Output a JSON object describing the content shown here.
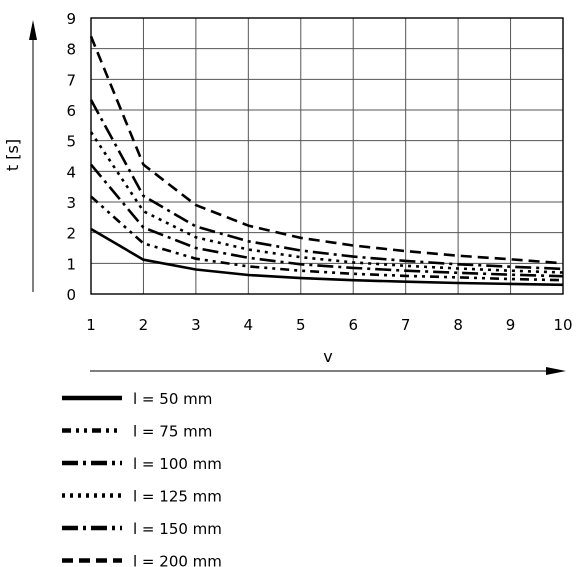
{
  "chart_data": {
    "type": "line",
    "title": "",
    "xlabel": "v",
    "ylabel": "t [s]",
    "xlim": [
      1,
      10
    ],
    "ylim": [
      0,
      9
    ],
    "x_ticks": [
      "1",
      "2",
      "3",
      "4",
      "5",
      "6",
      "7",
      "8",
      "9",
      "10"
    ],
    "y_ticks": [
      "0",
      "1",
      "2",
      "3",
      "4",
      "5",
      "6",
      "7",
      "8",
      "9"
    ],
    "grid": true,
    "legend_position": "bottom-left",
    "x": [
      1,
      2,
      3,
      4,
      5,
      6,
      7,
      8,
      9,
      10
    ],
    "series": [
      {
        "name": "l = 50 mm",
        "style": "solid",
        "values": [
          2.12,
          1.12,
          0.8,
          0.62,
          0.52,
          0.45,
          0.4,
          0.36,
          0.33,
          0.3
        ]
      },
      {
        "name": "l = 75 mm",
        "style": "dash-dot-dot",
        "values": [
          3.18,
          1.65,
          1.15,
          0.9,
          0.76,
          0.66,
          0.59,
          0.54,
          0.49,
          0.45
        ]
      },
      {
        "name": "l = 100 mm",
        "style": "long-dash-dot",
        "values": [
          4.22,
          2.17,
          1.5,
          1.18,
          0.97,
          0.85,
          0.76,
          0.69,
          0.63,
          0.58
        ]
      },
      {
        "name": "l = 125 mm",
        "style": "dotted",
        "values": [
          5.28,
          2.7,
          1.85,
          1.45,
          1.2,
          1.03,
          0.92,
          0.83,
          0.76,
          0.7
        ]
      },
      {
        "name": "l = 150 mm",
        "style": "long-dash-dot",
        "values": [
          6.33,
          3.2,
          2.2,
          1.72,
          1.42,
          1.22,
          1.08,
          0.97,
          0.89,
          0.82
        ]
      },
      {
        "name": "l = 200 mm",
        "style": "dashed",
        "values": [
          8.4,
          4.22,
          2.9,
          2.23,
          1.83,
          1.58,
          1.4,
          1.25,
          1.13,
          1.0
        ]
      }
    ]
  },
  "colors": {
    "line": "#000000",
    "grid": "#555555"
  }
}
